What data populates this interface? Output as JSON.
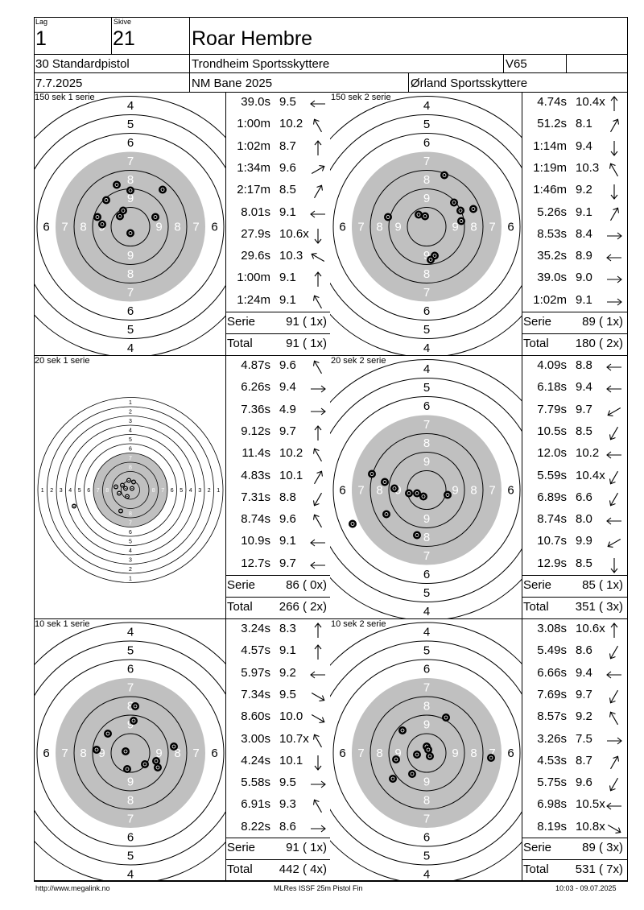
{
  "header": {
    "lag_label": "Lag",
    "lag_value": "1",
    "skive_label": "Skive",
    "skive_value": "21",
    "name": "Roar Hembre",
    "event": "30 Standardpistol",
    "club": "Trondheim Sportsskyttere",
    "class": "V65",
    "date": "7.7.2025",
    "competition": "NM Bane 2025",
    "organizer": "Ørland Sportsskyttere"
  },
  "panels": [
    {
      "label": "150 sek 1 serie",
      "target": "large",
      "ring_labels": [
        "4",
        "5",
        "6",
        "7",
        "8",
        "9"
      ],
      "shots": [
        {
          "time": "39.0s",
          "score": "9.5",
          "dir": "left"
        },
        {
          "time": "1:00m",
          "score": "10.2",
          "dir": "up-left"
        },
        {
          "time": "1:02m",
          "score": "8.7",
          "dir": "up"
        },
        {
          "time": "1:34m",
          "score": "9.6",
          "dir": "right-up"
        },
        {
          "time": "2:17m",
          "score": "8.5",
          "dir": "up-right"
        },
        {
          "time": "8.01s",
          "score": "9.1",
          "dir": "left"
        },
        {
          "time": "27.9s",
          "score": "10.6x",
          "dir": "down"
        },
        {
          "time": "29.6s",
          "score": "10.3",
          "dir": "left-up"
        },
        {
          "time": "1:00m",
          "score": "9.1",
          "dir": "up"
        },
        {
          "time": "1:24m",
          "score": "9.1",
          "dir": "up-left"
        }
      ],
      "serie_label": "Serie",
      "serie": "91 ( 1x)",
      "total_label": "Total",
      "total": "91 ( 1x)",
      "hits": [
        [
          -17,
          -52
        ],
        [
          0,
          -45
        ],
        [
          -30,
          -33
        ],
        [
          40,
          -46
        ],
        [
          -41,
          -12
        ],
        [
          -13,
          -13
        ],
        [
          -9,
          -20
        ],
        [
          -35,
          -3
        ],
        [
          0,
          8
        ],
        [
          31,
          -12
        ]
      ]
    },
    {
      "label": "150 sek 2 serie",
      "target": "large",
      "ring_labels": [
        "4",
        "5",
        "6",
        "7",
        "8",
        "9"
      ],
      "shots": [
        {
          "time": "4.74s",
          "score": "10.4x",
          "dir": "up"
        },
        {
          "time": "51.2s",
          "score": "8.1",
          "dir": "up-right"
        },
        {
          "time": "1:14m",
          "score": "9.4",
          "dir": "down"
        },
        {
          "time": "1:19m",
          "score": "10.3",
          "dir": "up-left"
        },
        {
          "time": "1:46m",
          "score": "9.2",
          "dir": "down"
        },
        {
          "time": "5.26s",
          "score": "9.1",
          "dir": "up-right"
        },
        {
          "time": "8.53s",
          "score": "8.4",
          "dir": "right"
        },
        {
          "time": "35.2s",
          "score": "8.9",
          "dir": "left"
        },
        {
          "time": "39.0s",
          "score": "9.0",
          "dir": "right"
        },
        {
          "time": "1:02m",
          "score": "9.1",
          "dir": "right"
        }
      ],
      "serie_label": "Serie",
      "serie": "89 ( 1x)",
      "total_label": "Total",
      "total": "180 ( 2x)",
      "hits": [
        [
          -10,
          -15
        ],
        [
          -2,
          -13
        ],
        [
          22,
          -64
        ],
        [
          34,
          -30
        ],
        [
          42,
          -20
        ],
        [
          58,
          -22
        ],
        [
          -48,
          -12
        ],
        [
          10,
          36
        ],
        [
          5,
          41
        ],
        [
          43,
          -7
        ]
      ]
    },
    {
      "label": "20 sek 1 serie",
      "target": "small",
      "ring_labels": [
        "1",
        "2",
        "3",
        "4",
        "5",
        "6",
        "7",
        "8"
      ],
      "shots": [
        {
          "time": "4.87s",
          "score": "9.6",
          "dir": "up-left"
        },
        {
          "time": "6.26s",
          "score": "9.4",
          "dir": "right"
        },
        {
          "time": "7.36s",
          "score": "4.9",
          "dir": "right"
        },
        {
          "time": "9.12s",
          "score": "9.7",
          "dir": "up"
        },
        {
          "time": "11.4s",
          "score": "10.2",
          "dir": "up-left"
        },
        {
          "time": "4.83s",
          "score": "10.1",
          "dir": "up-right"
        },
        {
          "time": "7.31s",
          "score": "8.8",
          "dir": "down-left"
        },
        {
          "time": "8.74s",
          "score": "9.6",
          "dir": "up-left"
        },
        {
          "time": "10.9s",
          "score": "9.1",
          "dir": "left"
        },
        {
          "time": "12.7s",
          "score": "9.7",
          "dir": "left"
        }
      ],
      "serie_label": "Serie",
      "serie": "86 ( 0x)",
      "total_label": "Total",
      "total": "266 ( 2x)",
      "hits": [
        [
          -2,
          -12
        ],
        [
          -10,
          -6
        ],
        [
          -70,
          20
        ],
        [
          -6,
          -2
        ],
        [
          2,
          -2
        ],
        [
          -14,
          4
        ],
        [
          -12,
          26
        ],
        [
          -4,
          8
        ],
        [
          4,
          -10
        ],
        [
          -18,
          -4
        ]
      ]
    },
    {
      "label": "20 sek 2 serie",
      "target": "large",
      "ring_labels": [
        "4",
        "5",
        "6",
        "7",
        "8",
        "9"
      ],
      "shots": [
        {
          "time": "4.09s",
          "score": "8.8",
          "dir": "left"
        },
        {
          "time": "6.18s",
          "score": "9.4",
          "dir": "left"
        },
        {
          "time": "7.79s",
          "score": "9.7",
          "dir": "left-down"
        },
        {
          "time": "10.5s",
          "score": "8.5",
          "dir": "down-left"
        },
        {
          "time": "12.0s",
          "score": "10.2",
          "dir": "left"
        },
        {
          "time": "5.59s",
          "score": "10.4x",
          "dir": "down-left"
        },
        {
          "time": "6.89s",
          "score": "6.6",
          "dir": "down-left"
        },
        {
          "time": "8.74s",
          "score": "8.0",
          "dir": "left"
        },
        {
          "time": "10.7s",
          "score": "9.9",
          "dir": "left-down"
        },
        {
          "time": "12.9s",
          "score": "8.5",
          "dir": "down"
        }
      ],
      "serie_label": "Serie",
      "serie": "85 ( 1x)",
      "total_label": "Total",
      "total": "351 ( 3x)",
      "hits": [
        [
          -68,
          -20
        ],
        [
          -52,
          -10
        ],
        [
          -40,
          -2
        ],
        [
          -22,
          4
        ],
        [
          -12,
          4
        ],
        [
          -4,
          8
        ],
        [
          -92,
          42
        ],
        [
          -50,
          30
        ],
        [
          -12,
          56
        ],
        [
          26,
          6
        ]
      ]
    },
    {
      "label": "10 sek 1 serie",
      "target": "large",
      "ring_labels": [
        "4",
        "5",
        "6",
        "7",
        "8",
        "9"
      ],
      "shots": [
        {
          "time": "3.24s",
          "score": "8.3",
          "dir": "up"
        },
        {
          "time": "4.57s",
          "score": "9.1",
          "dir": "up"
        },
        {
          "time": "5.97s",
          "score": "9.2",
          "dir": "left"
        },
        {
          "time": "7.34s",
          "score": "9.5",
          "dir": "right-down"
        },
        {
          "time": "8.60s",
          "score": "10.0",
          "dir": "right-down"
        },
        {
          "time": "3.00s",
          "score": "10.7x",
          "dir": "up-left"
        },
        {
          "time": "4.24s",
          "score": "10.1",
          "dir": "down"
        },
        {
          "time": "5.58s",
          "score": "9.5",
          "dir": "right"
        },
        {
          "time": "6.91s",
          "score": "9.3",
          "dir": "up-left"
        },
        {
          "time": "8.22s",
          "score": "8.6",
          "dir": "right"
        }
      ],
      "serie_label": "Serie",
      "serie": "91 ( 1x)",
      "total_label": "Total",
      "total": "442 ( 4x)",
      "hits": [
        [
          6,
          -58
        ],
        [
          4,
          -40
        ],
        [
          -28,
          -24
        ],
        [
          -42,
          -4
        ],
        [
          -6,
          -2
        ],
        [
          -4,
          20
        ],
        [
          18,
          14
        ],
        [
          32,
          10
        ],
        [
          34,
          18
        ],
        [
          54,
          -8
        ]
      ]
    },
    {
      "label": "10 sek 2 serie",
      "target": "large",
      "ring_labels": [
        "4",
        "5",
        "6",
        "7",
        "8",
        "9"
      ],
      "shots": [
        {
          "time": "3.08s",
          "score": "10.6x",
          "dir": "up"
        },
        {
          "time": "5.49s",
          "score": "8.6",
          "dir": "down-left"
        },
        {
          "time": "6.66s",
          "score": "9.4",
          "dir": "left"
        },
        {
          "time": "7.69s",
          "score": "9.7",
          "dir": "down-left"
        },
        {
          "time": "8.57s",
          "score": "9.2",
          "dir": "up-left"
        },
        {
          "time": "3.26s",
          "score": "7.5",
          "dir": "right"
        },
        {
          "time": "4.53s",
          "score": "8.7",
          "dir": "up-right"
        },
        {
          "time": "5.75s",
          "score": "9.6",
          "dir": "down-left"
        },
        {
          "time": "6.98s",
          "score": "10.5x",
          "dir": "left"
        },
        {
          "time": "8.19s",
          "score": "10.8x",
          "dir": "right-down"
        }
      ],
      "serie_label": "Serie",
      "serie": "89 ( 3x)",
      "total_label": "Total",
      "total": "531 ( 7x)",
      "hits": [
        [
          -30,
          -28
        ],
        [
          -38,
          8
        ],
        [
          -42,
          32
        ],
        [
          -18,
          26
        ],
        [
          -12,
          2
        ],
        [
          0,
          -8
        ],
        [
          4,
          4
        ],
        [
          2,
          -4
        ],
        [
          24,
          -44
        ],
        [
          80,
          6
        ]
      ]
    }
  ],
  "footer": {
    "left": "http://www.megalink.no",
    "center": "MLRes ISSF 25m Pistol Fin",
    "right": "10:03 - 09.07.2025"
  }
}
